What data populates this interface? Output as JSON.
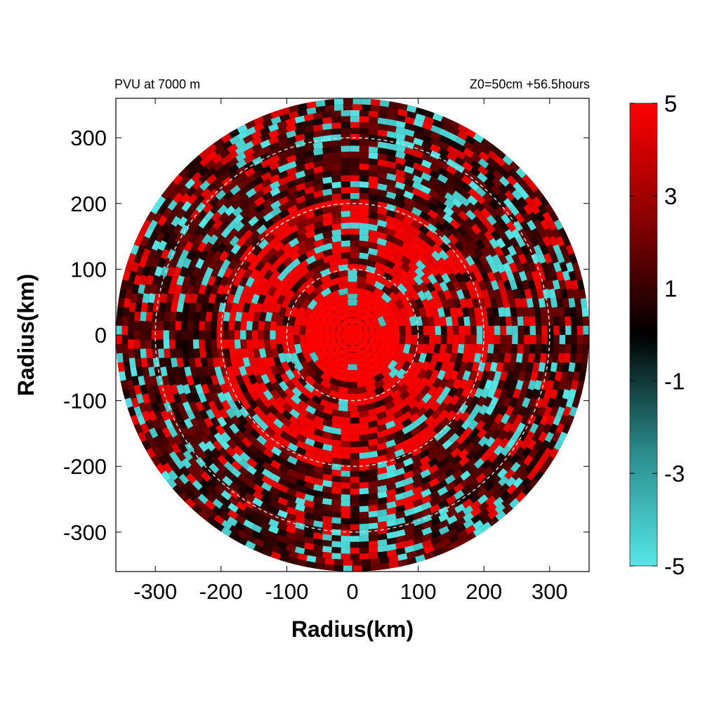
{
  "chart_data": {
    "type": "heatmap",
    "title": "PVU at  7000 m",
    "subtitle": "Z0=50cm  +56.5hours",
    "xlabel": "Radius(km)",
    "ylabel": "Radius(km)",
    "xlim": [
      -360,
      360
    ],
    "ylim": [
      -360,
      360
    ],
    "x_ticks": [
      -300,
      -200,
      -100,
      0,
      100,
      200,
      300
    ],
    "y_ticks": [
      300,
      200,
      100,
      0,
      -100,
      -200,
      -300
    ],
    "x_tick_labels": [
      "-300",
      "-200",
      "-100",
      "0",
      "100",
      "200",
      "300"
    ],
    "y_tick_labels": [
      "300",
      "200",
      "100",
      "0",
      "-100",
      "-200",
      "-300"
    ],
    "reference_circle_radii_km": [
      100,
      200,
      300
    ],
    "colorbar": {
      "range": [
        -5,
        5
      ],
      "ticks": [
        5,
        3,
        1,
        -1,
        -3,
        -5
      ],
      "tick_labels": [
        "5",
        "3",
        "1",
        "-1",
        "-3",
        "-5"
      ],
      "color_stops": [
        {
          "value": 5,
          "color": "#ff0000"
        },
        {
          "value": 2.5,
          "color": "#8a0000"
        },
        {
          "value": 0,
          "color": "#000000"
        },
        {
          "value": -2.5,
          "color": "#2a8a8a"
        },
        {
          "value": -5,
          "color": "#55e6e6"
        }
      ]
    },
    "field_description_regions": [
      {
        "r_km": [
          0,
          80
        ],
        "pvu": 5
      },
      {
        "r_km": [
          80,
          200
        ],
        "pvu": 4
      },
      {
        "r_km": [
          200,
          360
        ],
        "pvu": 1.5
      }
    ],
    "grid": false
  }
}
